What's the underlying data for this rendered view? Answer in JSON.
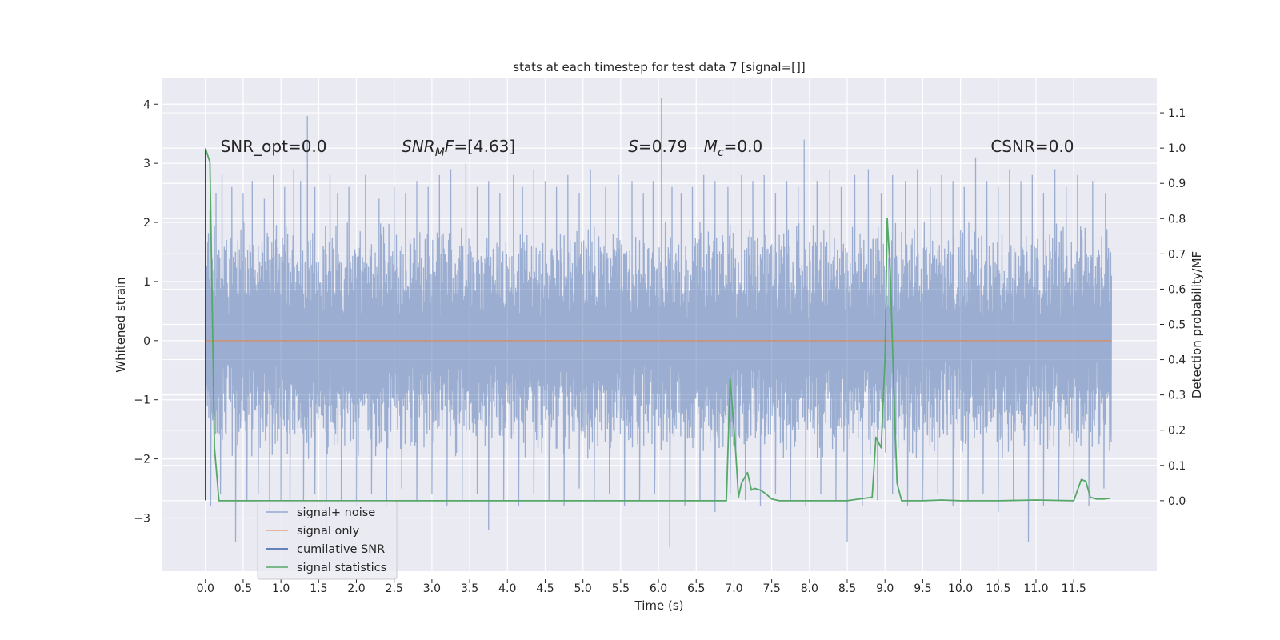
{
  "chart_data": {
    "type": "line",
    "title": "stats at each timestep for test data 7 [signal=[]]",
    "xlabel": "Time (s)",
    "ylabel_left": "Whitened strain",
    "ylabel_right": "Detection probability/MF",
    "xlim": [
      -0.58,
      12.6
    ],
    "ylim_left": [
      -3.9,
      4.45
    ],
    "ylim_right": [
      -0.2,
      1.2
    ],
    "x_ticks": [
      0.0,
      0.5,
      1.0,
      1.5,
      2.0,
      2.5,
      3.0,
      3.5,
      4.0,
      4.5,
      5.0,
      5.5,
      6.0,
      6.5,
      7.0,
      7.5,
      8.0,
      8.5,
      9.0,
      9.5,
      10.0,
      10.5,
      11.0,
      11.5
    ],
    "x_tick_labels": [
      "0.0",
      "0.5",
      "1.0",
      "1.5",
      "2.0",
      "2.5",
      "3.0",
      "3.5",
      "4.0",
      "4.5",
      "5.0",
      "5.5",
      "6.0",
      "6.5",
      "7.0",
      "7.5",
      "8.0",
      "8.5",
      "9.0",
      "9.5",
      "10.0",
      "10.5",
      "11.0",
      "11.5"
    ],
    "y_left_ticks": [
      -3,
      -2,
      -1,
      0,
      1,
      2,
      3,
      4
    ],
    "y_left_tick_labels": [
      "−3",
      "−2",
      "−1",
      "0",
      "1",
      "2",
      "3",
      "4"
    ],
    "y_right_ticks": [
      0.0,
      0.1,
      0.2,
      0.3,
      0.4,
      0.5,
      0.6,
      0.7,
      0.8,
      0.9,
      1.0,
      1.1
    ],
    "y_right_tick_labels": [
      "0.0",
      "0.1",
      "0.2",
      "0.3",
      "0.4",
      "0.5",
      "0.6",
      "0.7",
      "0.8",
      "0.9",
      "1.0",
      "1.1"
    ],
    "grid": true,
    "legend_position": "lower-left",
    "legend": [
      {
        "label": "signal+ noise",
        "color": "#4c72b0"
      },
      {
        "label": "signal only",
        "color": "#dd8452"
      },
      {
        "label": "cumilative SNR",
        "color": "#3a5ea8"
      },
      {
        "label": "signal statistics",
        "color": "#55a868"
      }
    ],
    "annotations": [
      {
        "text": "SNR_opt=0.0",
        "x": 0.2,
        "y": 3.3,
        "style": "normal"
      },
      {
        "text": "SNR_MF=[4.63]",
        "x": 2.6,
        "y": 3.3,
        "style": "italic-math"
      },
      {
        "text": "S=0.79",
        "x": 5.6,
        "y": 3.3,
        "style": "italic-math"
      },
      {
        "text": "M_c=0.0",
        "x": 6.6,
        "y": 3.3,
        "style": "italic-math"
      },
      {
        "text": "CSNR=0.0",
        "x": 10.4,
        "y": 3.3,
        "style": "normal"
      }
    ],
    "series": [
      {
        "name": "signal+ noise",
        "axis": "left",
        "color": "#4c72b0",
        "alpha": 0.5,
        "t_start": 0.0,
        "t_end": 12.0,
        "typical_band": [
          -1.5,
          1.5
        ],
        "peaks_max": [
          [
            0.06,
            2.2
          ],
          [
            0.14,
            2.5
          ],
          [
            0.22,
            2.8
          ],
          [
            0.35,
            2.6
          ],
          [
            0.5,
            2.5
          ],
          [
            0.62,
            2.7
          ],
          [
            0.78,
            2.4
          ],
          [
            0.9,
            2.8
          ],
          [
            1.05,
            2.6
          ],
          [
            1.17,
            2.9
          ],
          [
            1.26,
            2.7
          ],
          [
            1.35,
            3.8
          ],
          [
            1.45,
            2.6
          ],
          [
            1.65,
            2.8
          ],
          [
            1.75,
            2.5
          ],
          [
            1.9,
            2.6
          ],
          [
            2.12,
            2.8
          ],
          [
            2.3,
            2.4
          ],
          [
            2.5,
            2.6
          ],
          [
            2.65,
            2.5
          ],
          [
            2.8,
            2.7
          ],
          [
            2.95,
            2.6
          ],
          [
            3.1,
            2.8
          ],
          [
            3.25,
            2.9
          ],
          [
            3.45,
            3.0
          ],
          [
            3.6,
            2.6
          ],
          [
            3.75,
            2.7
          ],
          [
            3.9,
            2.5
          ],
          [
            4.08,
            2.8
          ],
          [
            4.2,
            2.6
          ],
          [
            4.35,
            2.9
          ],
          [
            4.5,
            2.7
          ],
          [
            4.65,
            2.6
          ],
          [
            4.8,
            2.8
          ],
          [
            4.95,
            2.5
          ],
          [
            5.1,
            2.9
          ],
          [
            5.3,
            2.6
          ],
          [
            5.47,
            2.8
          ],
          [
            5.65,
            2.7
          ],
          [
            5.8,
            2.5
          ],
          [
            5.93,
            2.7
          ],
          [
            6.04,
            4.1
          ],
          [
            6.18,
            2.6
          ],
          [
            6.3,
            2.5
          ],
          [
            6.45,
            2.6
          ],
          [
            6.6,
            2.8
          ],
          [
            6.75,
            2.7
          ],
          [
            6.92,
            2.6
          ],
          [
            7.1,
            2.8
          ],
          [
            7.25,
            2.7
          ],
          [
            7.4,
            2.8
          ],
          [
            7.55,
            2.5
          ],
          [
            7.7,
            2.7
          ],
          [
            7.85,
            2.6
          ],
          [
            7.93,
            3.4
          ],
          [
            8.1,
            2.7
          ],
          [
            8.27,
            2.9
          ],
          [
            8.42,
            2.6
          ],
          [
            8.6,
            2.8
          ],
          [
            8.78,
            2.9
          ],
          [
            8.95,
            2.5
          ],
          [
            9.1,
            2.8
          ],
          [
            9.27,
            2.7
          ],
          [
            9.43,
            2.9
          ],
          [
            9.6,
            2.6
          ],
          [
            9.75,
            2.8
          ],
          [
            9.9,
            2.7
          ],
          [
            10.05,
            2.6
          ],
          [
            10.2,
            3.1
          ],
          [
            10.35,
            2.7
          ],
          [
            10.5,
            2.6
          ],
          [
            10.65,
            2.9
          ],
          [
            10.8,
            2.7
          ],
          [
            10.95,
            2.8
          ],
          [
            11.1,
            2.5
          ],
          [
            11.25,
            2.9
          ],
          [
            11.4,
            2.6
          ],
          [
            11.55,
            2.8
          ],
          [
            11.75,
            2.7
          ],
          [
            11.92,
            2.5
          ]
        ],
        "peaks_min": [
          [
            0.07,
            -2.8
          ],
          [
            0.2,
            -2.6
          ],
          [
            0.4,
            -3.4
          ],
          [
            0.55,
            -2.7
          ],
          [
            0.7,
            -2.6
          ],
          [
            0.85,
            -2.9
          ],
          [
            1.0,
            -2.7
          ],
          [
            1.12,
            -2.8
          ],
          [
            1.3,
            -2.7
          ],
          [
            1.45,
            -2.6
          ],
          [
            1.6,
            -3.2
          ],
          [
            1.8,
            -2.7
          ],
          [
            2.0,
            -2.8
          ],
          [
            2.2,
            -2.6
          ],
          [
            2.4,
            -2.8
          ],
          [
            2.6,
            -2.5
          ],
          [
            2.8,
            -2.7
          ],
          [
            3.0,
            -2.6
          ],
          [
            3.2,
            -2.8
          ],
          [
            3.4,
            -2.7
          ],
          [
            3.6,
            -2.6
          ],
          [
            3.75,
            -3.2
          ],
          [
            3.95,
            -2.7
          ],
          [
            4.15,
            -2.8
          ],
          [
            4.35,
            -2.6
          ],
          [
            4.55,
            -2.7
          ],
          [
            4.75,
            -2.8
          ],
          [
            4.95,
            -2.5
          ],
          [
            5.15,
            -2.7
          ],
          [
            5.35,
            -2.6
          ],
          [
            5.55,
            -2.8
          ],
          [
            5.75,
            -2.7
          ],
          [
            5.95,
            -2.6
          ],
          [
            6.15,
            -3.5
          ],
          [
            6.35,
            -2.8
          ],
          [
            6.55,
            -2.7
          ],
          [
            6.75,
            -2.9
          ],
          [
            6.95,
            -2.6
          ],
          [
            7.15,
            -2.7
          ],
          [
            7.35,
            -2.8
          ],
          [
            7.55,
            -2.6
          ],
          [
            7.75,
            -2.7
          ],
          [
            7.95,
            -2.8
          ],
          [
            8.15,
            -2.6
          ],
          [
            8.35,
            -2.7
          ],
          [
            8.5,
            -3.4
          ],
          [
            8.7,
            -2.8
          ],
          [
            8.9,
            -2.7
          ],
          [
            9.1,
            -2.6
          ],
          [
            9.3,
            -2.8
          ],
          [
            9.5,
            -2.7
          ],
          [
            9.7,
            -2.6
          ],
          [
            9.9,
            -2.8
          ],
          [
            10.1,
            -2.7
          ],
          [
            10.3,
            -2.6
          ],
          [
            10.5,
            -2.9
          ],
          [
            10.7,
            -2.7
          ],
          [
            10.9,
            -3.4
          ],
          [
            11.1,
            -2.8
          ],
          [
            11.3,
            -2.7
          ],
          [
            11.5,
            -2.6
          ],
          [
            11.7,
            -2.8
          ],
          [
            11.9,
            -2.5
          ]
        ]
      },
      {
        "name": "signal only",
        "axis": "left",
        "color": "#dd8452",
        "x": [
          0.0,
          12.0
        ],
        "y": [
          0.0,
          0.0
        ]
      },
      {
        "name": "cumilative SNR",
        "axis": "left",
        "color": "#3a5ea8",
        "x": [
          0.0,
          0.0
        ],
        "y": [
          -2.7,
          3.25
        ]
      },
      {
        "name": "signal statistics",
        "axis": "right",
        "color": "#55a868",
        "x": [
          0.0,
          0.06,
          0.12,
          0.18,
          0.5,
          1.0,
          2.0,
          3.0,
          4.0,
          5.0,
          6.0,
          6.9,
          6.95,
          7.02,
          7.06,
          7.1,
          7.18,
          7.23,
          7.27,
          7.35,
          7.42,
          7.5,
          7.6,
          8.0,
          8.5,
          8.83,
          8.88,
          8.95,
          9.0,
          9.03,
          9.07,
          9.12,
          9.16,
          9.22,
          9.3,
          9.5,
          9.75,
          10.0,
          10.5,
          11.0,
          11.5,
          11.6,
          11.66,
          11.72,
          11.8,
          11.9,
          11.98
        ],
        "y": [
          1.0,
          0.96,
          0.15,
          0.0,
          0.0,
          0.0,
          0.0,
          0.0,
          0.0,
          0.0,
          0.0,
          0.0,
          0.345,
          0.15,
          0.01,
          0.05,
          0.08,
          0.03,
          0.035,
          0.03,
          0.02,
          0.005,
          0.0,
          0.0,
          0.0,
          0.01,
          0.18,
          0.15,
          0.4,
          0.8,
          0.65,
          0.3,
          0.05,
          0.0,
          0.0,
          0.0,
          0.002,
          0.0,
          0.0,
          0.002,
          0.0,
          0.06,
          0.055,
          0.01,
          0.005,
          0.005,
          0.007
        ]
      }
    ]
  }
}
